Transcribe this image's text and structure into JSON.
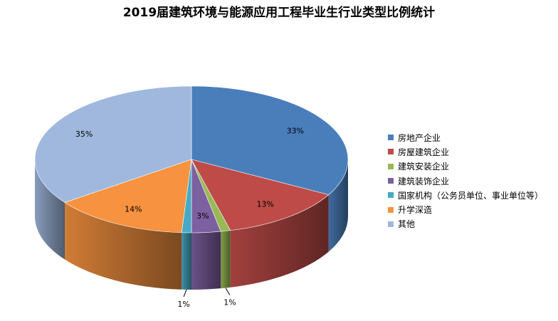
{
  "chart_data": {
    "type": "pie",
    "title": "2019届建筑环境与能源应用工程毕业生行业类型比例统计",
    "legend_position": "right",
    "slices": [
      {
        "label": "房地产企业",
        "value": 33,
        "display": "33%",
        "color": "#4a7ebb"
      },
      {
        "label": "房屋建筑企业",
        "value": 13,
        "display": "13%",
        "color": "#be4b48"
      },
      {
        "label": "建筑安装企业",
        "value": 1,
        "display": "1%",
        "color": "#98b954"
      },
      {
        "label": "建筑装饰企业",
        "value": 3,
        "display": "3%",
        "color": "#7d60a0"
      },
      {
        "label": "国家机构（公务员单位、事业单位等）",
        "value": 1,
        "display": "1%",
        "color": "#46aac5"
      },
      {
        "label": "升学深造",
        "value": 14,
        "display": "14%",
        "color": "#f69240"
      },
      {
        "label": "其他",
        "value": 35,
        "display": "35%",
        "color": "#a0b8dd"
      }
    ]
  }
}
